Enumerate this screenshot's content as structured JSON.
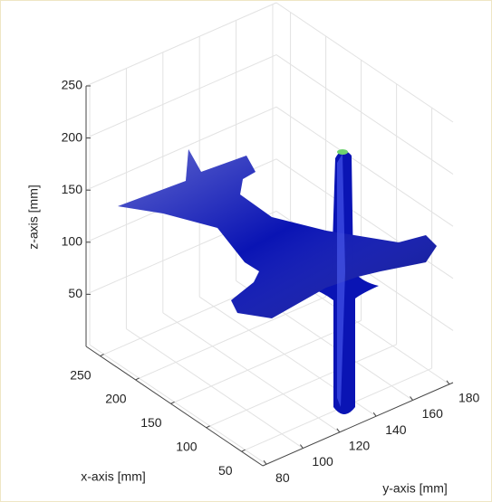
{
  "chart_data": {
    "type": "isosurface",
    "xlabel": "x-axis [mm]",
    "ylabel": "y-axis [mm]",
    "zlabel": "z-axis [mm]",
    "xlim": [
      20,
      270
    ],
    "ylim": [
      78,
      182
    ],
    "zlim": [
      0,
      250
    ],
    "xticks": [
      50,
      100,
      150,
      200,
      250
    ],
    "yticks": [
      80,
      100,
      120,
      140,
      160,
      180
    ],
    "zticks": [
      50,
      100,
      150,
      200,
      250
    ],
    "grid": true,
    "color": "#0a14b4"
  }
}
